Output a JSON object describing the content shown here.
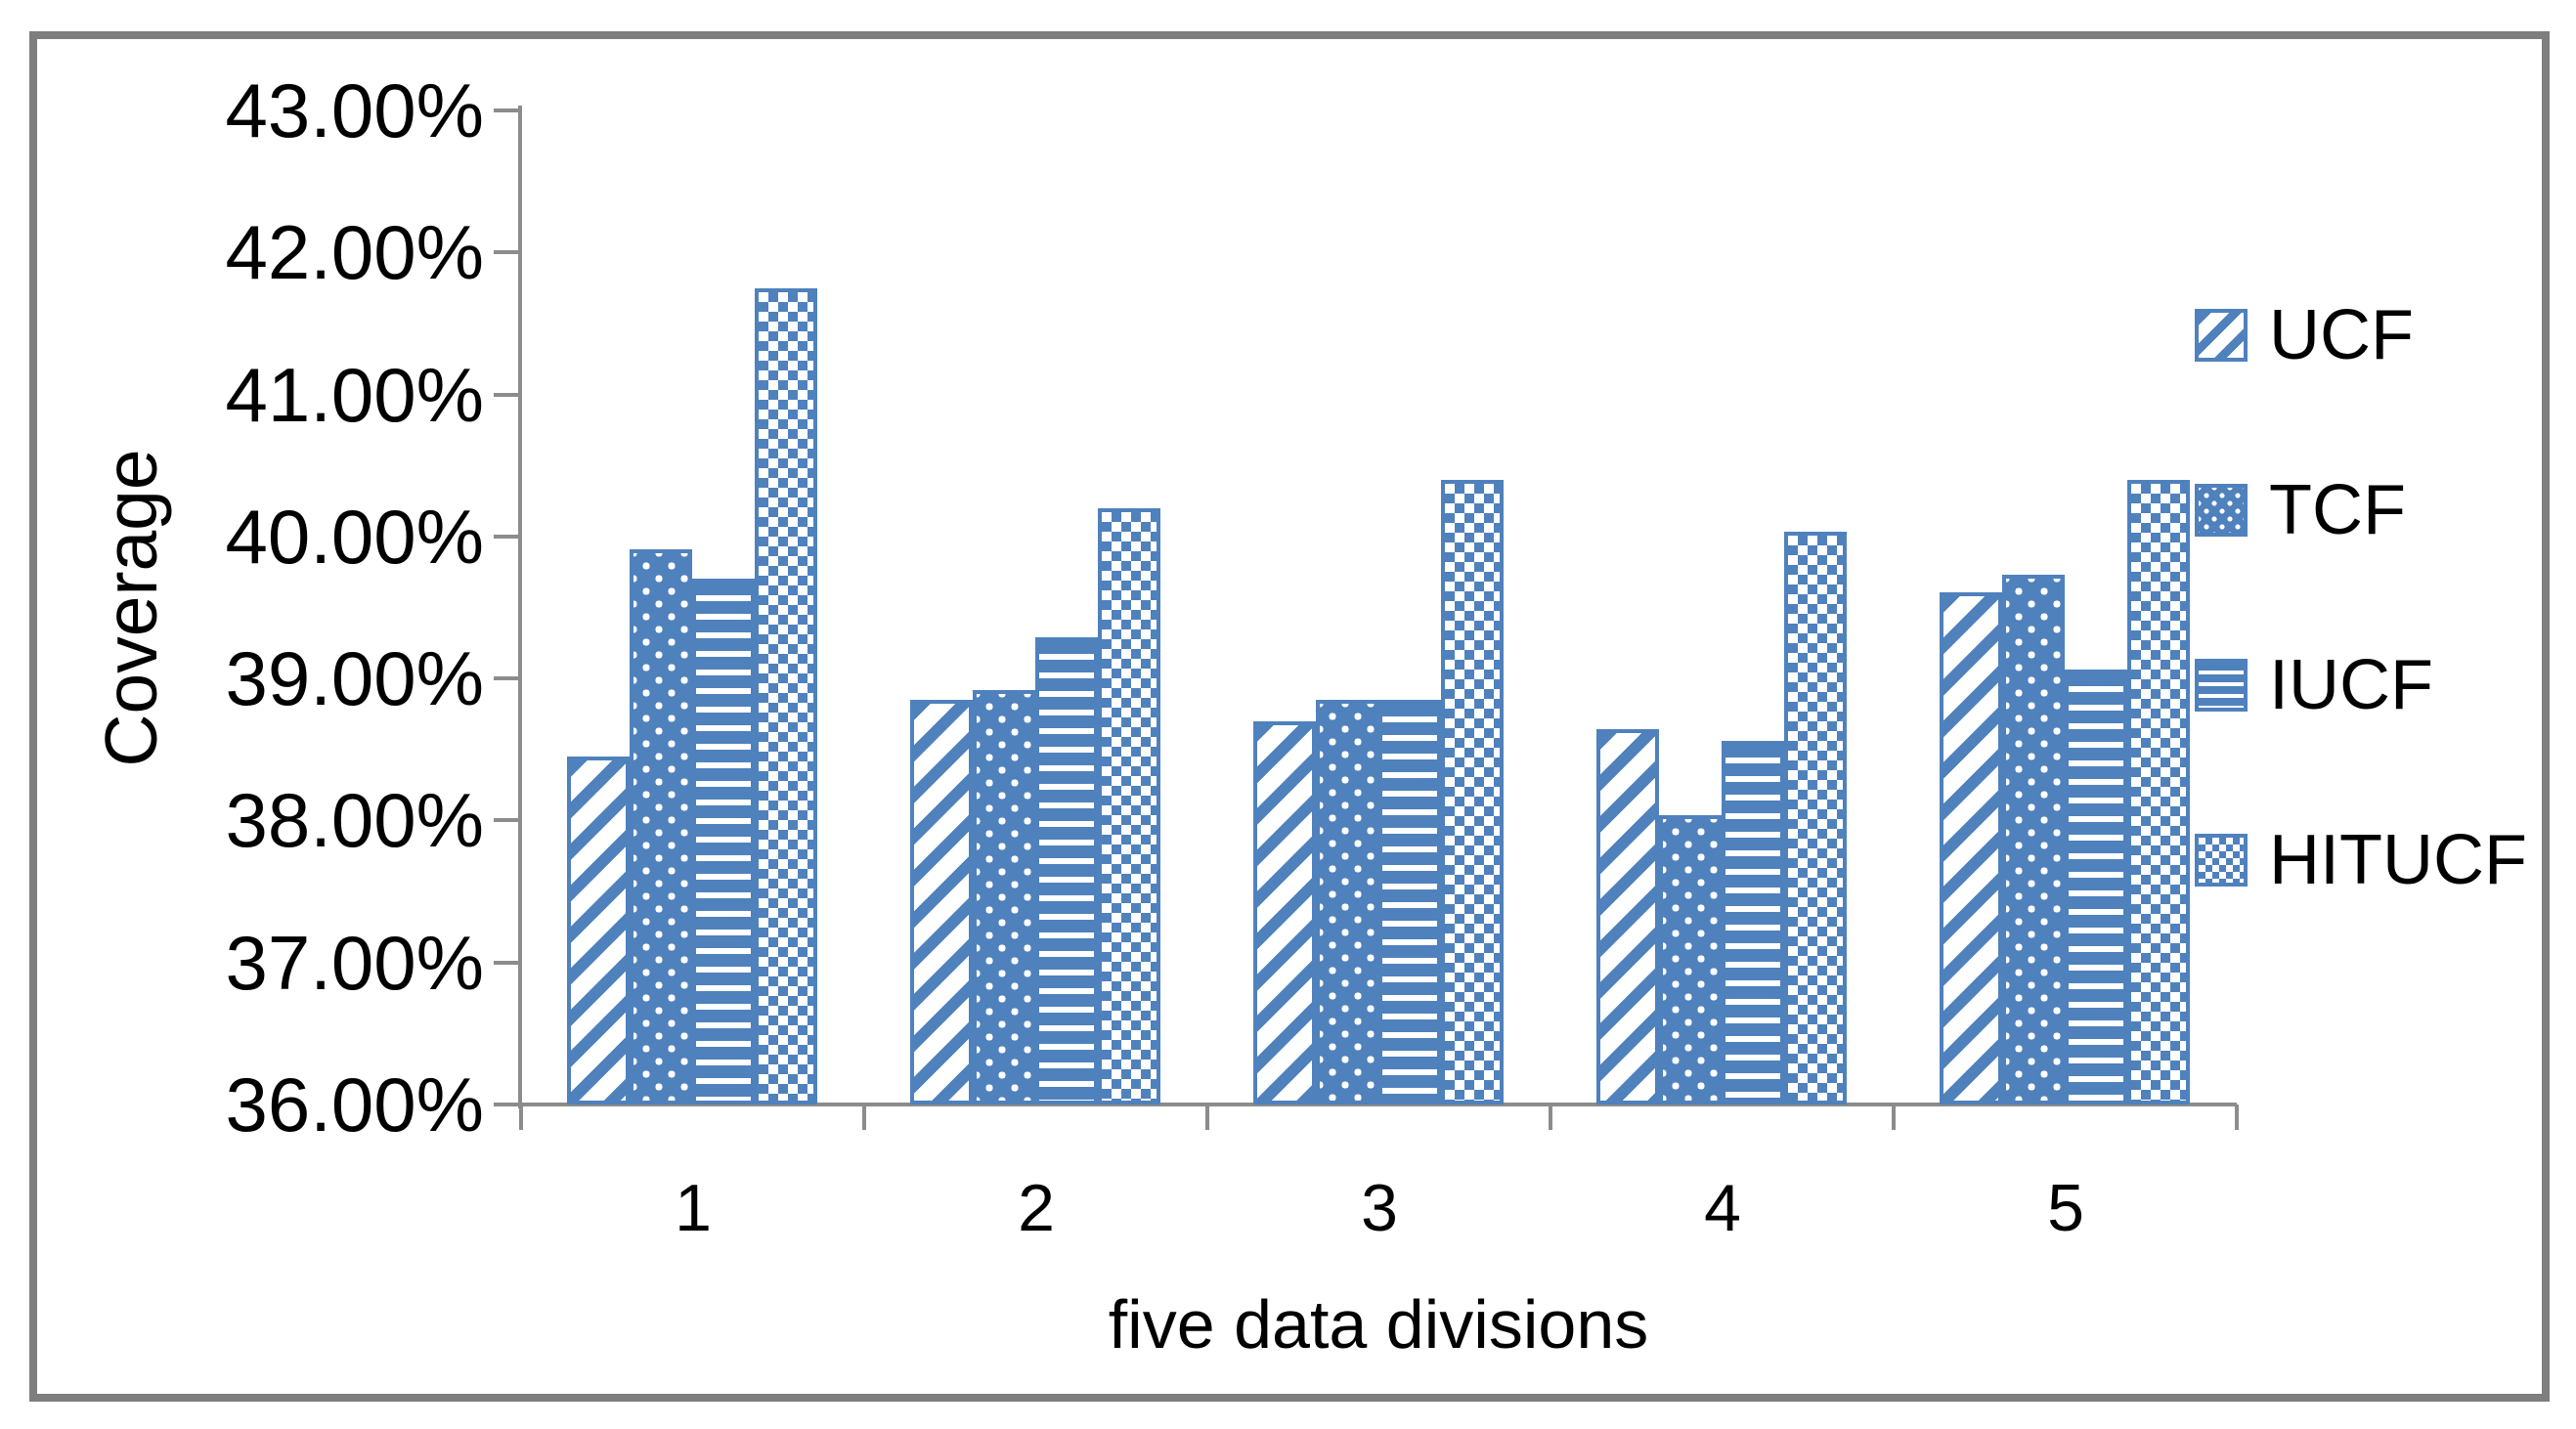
{
  "chart_data": {
    "type": "bar",
    "title": "",
    "xlabel": "five data divisions",
    "ylabel": "Coverage",
    "categories": [
      "1",
      "2",
      "3",
      "4",
      "5"
    ],
    "series": [
      {
        "name": "UCF",
        "pattern": "diagonal-stripes",
        "values": [
          38.45,
          38.85,
          38.7,
          38.64,
          39.61
        ]
      },
      {
        "name": "TCF",
        "pattern": "dots",
        "values": [
          39.91,
          38.92,
          38.85,
          38.04,
          39.73
        ]
      },
      {
        "name": "IUCF",
        "pattern": "horizontal-lines",
        "values": [
          39.7,
          39.29,
          38.85,
          38.56,
          39.06
        ]
      },
      {
        "name": "HITUCF",
        "pattern": "checker-dots",
        "values": [
          41.75,
          40.2,
          40.4,
          40.03,
          40.4
        ]
      }
    ],
    "y_axis": {
      "min": 36,
      "max": 43,
      "tick_step": 1,
      "tick_labels": [
        "43.00%",
        "42.00%",
        "41.00%",
        "40.00%",
        "39.00%",
        "38.00%",
        "37.00%",
        "36.00%"
      ]
    },
    "legend_position": "right",
    "grid": false,
    "bar_color": "#4F81BD",
    "axis_color": "#8C8C8C",
    "frame_color": "#7E7E7E"
  }
}
